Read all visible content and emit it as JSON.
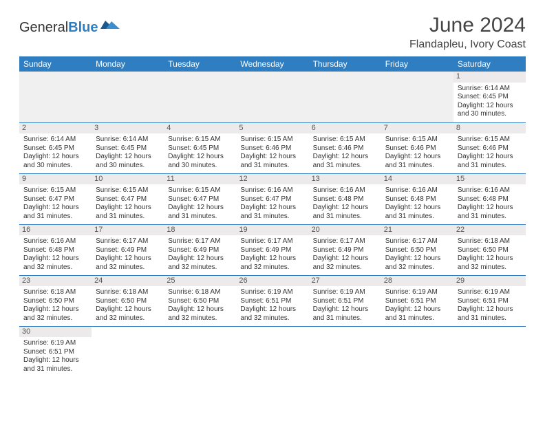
{
  "logo": {
    "text_general": "General",
    "text_blue": "Blue"
  },
  "title": "June 2024",
  "location": "Flandapleu, Ivory Coast",
  "colors": {
    "header_bg": "#2f7ec2",
    "header_fg": "#ffffff",
    "daynum_bg": "#eceaea",
    "border": "#2f7ec2",
    "text": "#333333"
  },
  "weekdays": [
    "Sunday",
    "Monday",
    "Tuesday",
    "Wednesday",
    "Thursday",
    "Friday",
    "Saturday"
  ],
  "first_weekday_index": 6,
  "days": [
    {
      "n": 1,
      "sunrise": "6:14 AM",
      "sunset": "6:45 PM",
      "daylight": "12 hours and 30 minutes."
    },
    {
      "n": 2,
      "sunrise": "6:14 AM",
      "sunset": "6:45 PM",
      "daylight": "12 hours and 30 minutes."
    },
    {
      "n": 3,
      "sunrise": "6:14 AM",
      "sunset": "6:45 PM",
      "daylight": "12 hours and 30 minutes."
    },
    {
      "n": 4,
      "sunrise": "6:15 AM",
      "sunset": "6:45 PM",
      "daylight": "12 hours and 30 minutes."
    },
    {
      "n": 5,
      "sunrise": "6:15 AM",
      "sunset": "6:46 PM",
      "daylight": "12 hours and 31 minutes."
    },
    {
      "n": 6,
      "sunrise": "6:15 AM",
      "sunset": "6:46 PM",
      "daylight": "12 hours and 31 minutes."
    },
    {
      "n": 7,
      "sunrise": "6:15 AM",
      "sunset": "6:46 PM",
      "daylight": "12 hours and 31 minutes."
    },
    {
      "n": 8,
      "sunrise": "6:15 AM",
      "sunset": "6:46 PM",
      "daylight": "12 hours and 31 minutes."
    },
    {
      "n": 9,
      "sunrise": "6:15 AM",
      "sunset": "6:47 PM",
      "daylight": "12 hours and 31 minutes."
    },
    {
      "n": 10,
      "sunrise": "6:15 AM",
      "sunset": "6:47 PM",
      "daylight": "12 hours and 31 minutes."
    },
    {
      "n": 11,
      "sunrise": "6:15 AM",
      "sunset": "6:47 PM",
      "daylight": "12 hours and 31 minutes."
    },
    {
      "n": 12,
      "sunrise": "6:16 AM",
      "sunset": "6:47 PM",
      "daylight": "12 hours and 31 minutes."
    },
    {
      "n": 13,
      "sunrise": "6:16 AM",
      "sunset": "6:48 PM",
      "daylight": "12 hours and 31 minutes."
    },
    {
      "n": 14,
      "sunrise": "6:16 AM",
      "sunset": "6:48 PM",
      "daylight": "12 hours and 31 minutes."
    },
    {
      "n": 15,
      "sunrise": "6:16 AM",
      "sunset": "6:48 PM",
      "daylight": "12 hours and 31 minutes."
    },
    {
      "n": 16,
      "sunrise": "6:16 AM",
      "sunset": "6:48 PM",
      "daylight": "12 hours and 32 minutes."
    },
    {
      "n": 17,
      "sunrise": "6:17 AM",
      "sunset": "6:49 PM",
      "daylight": "12 hours and 32 minutes."
    },
    {
      "n": 18,
      "sunrise": "6:17 AM",
      "sunset": "6:49 PM",
      "daylight": "12 hours and 32 minutes."
    },
    {
      "n": 19,
      "sunrise": "6:17 AM",
      "sunset": "6:49 PM",
      "daylight": "12 hours and 32 minutes."
    },
    {
      "n": 20,
      "sunrise": "6:17 AM",
      "sunset": "6:49 PM",
      "daylight": "12 hours and 32 minutes."
    },
    {
      "n": 21,
      "sunrise": "6:17 AM",
      "sunset": "6:50 PM",
      "daylight": "12 hours and 32 minutes."
    },
    {
      "n": 22,
      "sunrise": "6:18 AM",
      "sunset": "6:50 PM",
      "daylight": "12 hours and 32 minutes."
    },
    {
      "n": 23,
      "sunrise": "6:18 AM",
      "sunset": "6:50 PM",
      "daylight": "12 hours and 32 minutes."
    },
    {
      "n": 24,
      "sunrise": "6:18 AM",
      "sunset": "6:50 PM",
      "daylight": "12 hours and 32 minutes."
    },
    {
      "n": 25,
      "sunrise": "6:18 AM",
      "sunset": "6:50 PM",
      "daylight": "12 hours and 32 minutes."
    },
    {
      "n": 26,
      "sunrise": "6:19 AM",
      "sunset": "6:51 PM",
      "daylight": "12 hours and 32 minutes."
    },
    {
      "n": 27,
      "sunrise": "6:19 AM",
      "sunset": "6:51 PM",
      "daylight": "12 hours and 31 minutes."
    },
    {
      "n": 28,
      "sunrise": "6:19 AM",
      "sunset": "6:51 PM",
      "daylight": "12 hours and 31 minutes."
    },
    {
      "n": 29,
      "sunrise": "6:19 AM",
      "sunset": "6:51 PM",
      "daylight": "12 hours and 31 minutes."
    },
    {
      "n": 30,
      "sunrise": "6:19 AM",
      "sunset": "6:51 PM",
      "daylight": "12 hours and 31 minutes."
    }
  ],
  "labels": {
    "sunrise": "Sunrise:",
    "sunset": "Sunset:",
    "daylight": "Daylight:"
  }
}
